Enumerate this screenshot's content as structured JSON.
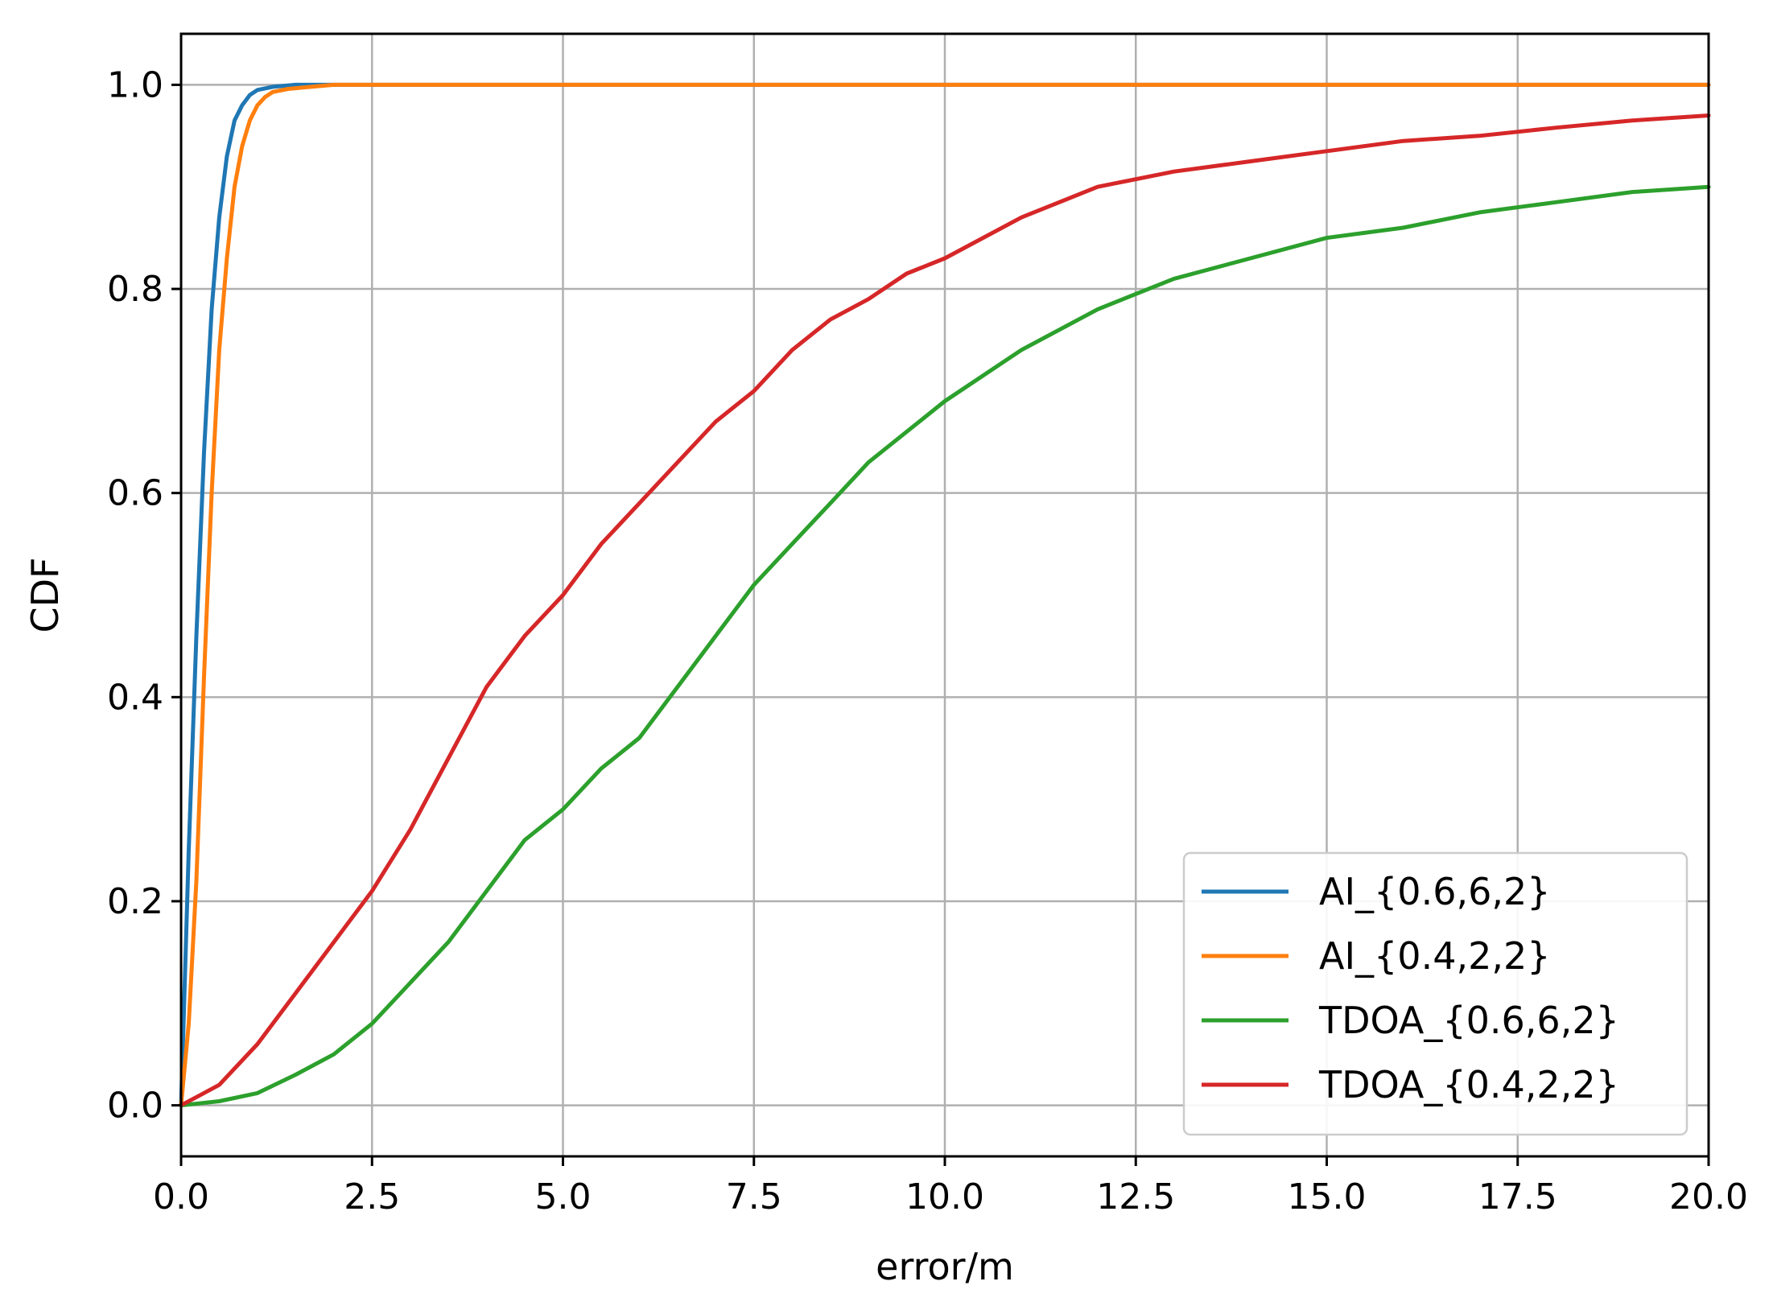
{
  "chart_data": {
    "type": "line",
    "title": "",
    "xlabel": "error/m",
    "ylabel": "CDF",
    "xlim": [
      0,
      20
    ],
    "ylim": [
      -0.05,
      1.05
    ],
    "xticks": [
      "0.0",
      "2.5",
      "5.0",
      "7.5",
      "10.0",
      "12.5",
      "15.0",
      "17.5",
      "20.0"
    ],
    "yticks": [
      "0.0",
      "0.2",
      "0.4",
      "0.6",
      "0.8",
      "1.0"
    ],
    "grid": true,
    "legend_position": "lower-right",
    "series": [
      {
        "name": "AI_{0.6,6,2}",
        "color": "#1f77b4",
        "x": [
          0,
          0.1,
          0.2,
          0.3,
          0.4,
          0.5,
          0.6,
          0.7,
          0.8,
          0.9,
          1.0,
          1.2,
          1.5,
          2.0,
          20.0
        ],
        "y": [
          0,
          0.25,
          0.46,
          0.64,
          0.78,
          0.87,
          0.93,
          0.965,
          0.98,
          0.99,
          0.995,
          0.998,
          1.0,
          1.0,
          1.0
        ]
      },
      {
        "name": "AI_{0.4,2,2}",
        "color": "#ff7f0e",
        "x": [
          0,
          0.1,
          0.2,
          0.3,
          0.4,
          0.5,
          0.6,
          0.7,
          0.8,
          0.9,
          1.0,
          1.1,
          1.2,
          1.4,
          1.7,
          2.0,
          20.0
        ],
        "y": [
          0,
          0.08,
          0.22,
          0.42,
          0.6,
          0.74,
          0.83,
          0.9,
          0.94,
          0.965,
          0.98,
          0.988,
          0.993,
          0.996,
          0.998,
          1.0,
          1.0
        ]
      },
      {
        "name": "TDOA_{0.6,6,2}",
        "color": "#2ca02c",
        "x": [
          0,
          0.5,
          1.0,
          1.5,
          2.0,
          2.5,
          3.0,
          3.5,
          4.0,
          4.5,
          5.0,
          5.5,
          6.0,
          6.5,
          7.0,
          7.5,
          8.0,
          8.5,
          9.0,
          9.5,
          10.0,
          11.0,
          12.0,
          13.0,
          14.0,
          15.0,
          16.0,
          17.0,
          18.0,
          19.0,
          20.0
        ],
        "y": [
          0,
          0.004,
          0.012,
          0.03,
          0.05,
          0.08,
          0.12,
          0.16,
          0.21,
          0.26,
          0.29,
          0.33,
          0.36,
          0.41,
          0.46,
          0.51,
          0.55,
          0.59,
          0.63,
          0.66,
          0.69,
          0.74,
          0.78,
          0.81,
          0.83,
          0.85,
          0.86,
          0.875,
          0.885,
          0.895,
          0.9
        ]
      },
      {
        "name": "TDOA_{0.4,2,2}",
        "color": "#d62728",
        "x": [
          0,
          0.5,
          1.0,
          1.5,
          2.0,
          2.5,
          3.0,
          3.5,
          4.0,
          4.5,
          5.0,
          5.5,
          6.0,
          6.5,
          7.0,
          7.5,
          8.0,
          8.5,
          9.0,
          9.5,
          10.0,
          11.0,
          12.0,
          13.0,
          14.0,
          15.0,
          16.0,
          17.0,
          18.0,
          19.0,
          20.0
        ],
        "y": [
          0,
          0.02,
          0.06,
          0.11,
          0.16,
          0.21,
          0.27,
          0.34,
          0.41,
          0.46,
          0.5,
          0.55,
          0.59,
          0.63,
          0.67,
          0.7,
          0.74,
          0.77,
          0.79,
          0.815,
          0.83,
          0.87,
          0.9,
          0.915,
          0.925,
          0.935,
          0.945,
          0.95,
          0.958,
          0.965,
          0.97
        ]
      }
    ]
  }
}
